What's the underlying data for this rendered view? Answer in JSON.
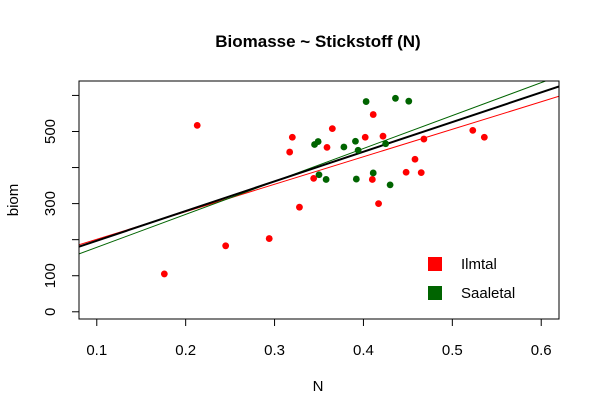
{
  "chart_data": {
    "type": "scatter",
    "title": "Biomasse ~ Stickstoff (N)",
    "xlabel": "N",
    "ylabel": "biom",
    "xlim": [
      0.08,
      0.62
    ],
    "ylim": [
      -20,
      640
    ],
    "xticks": [
      0.1,
      0.2,
      0.3,
      0.4,
      0.5,
      0.6
    ],
    "xtick_labels": [
      "0.1",
      "0.2",
      "0.3",
      "0.4",
      "0.5",
      "0.6"
    ],
    "yticks": [
      0,
      100,
      300,
      500
    ],
    "ytick_labels": [
      "0",
      "100",
      "300",
      "500"
    ],
    "grid": false,
    "legend_position": "bottom-right",
    "series": [
      {
        "name": "Ilmtal",
        "color": "#ff0000",
        "points": [
          [
            0.176,
            105
          ],
          [
            0.213,
            517
          ],
          [
            0.245,
            183
          ],
          [
            0.294,
            203
          ],
          [
            0.317,
            443
          ],
          [
            0.32,
            484
          ],
          [
            0.328,
            290
          ],
          [
            0.344,
            370
          ],
          [
            0.359,
            456
          ],
          [
            0.365,
            508
          ],
          [
            0.402,
            484
          ],
          [
            0.41,
            367
          ],
          [
            0.411,
            547
          ],
          [
            0.417,
            300
          ],
          [
            0.422,
            487
          ],
          [
            0.448,
            387
          ],
          [
            0.458,
            423
          ],
          [
            0.465,
            386
          ],
          [
            0.468,
            479
          ],
          [
            0.523,
            503
          ],
          [
            0.536,
            484
          ]
        ]
      },
      {
        "name": "Saaletal",
        "color": "#006400",
        "points": [
          [
            0.345,
            464
          ],
          [
            0.349,
            472
          ],
          [
            0.35,
            380
          ],
          [
            0.358,
            367
          ],
          [
            0.378,
            457
          ],
          [
            0.391,
            473
          ],
          [
            0.392,
            368
          ],
          [
            0.394,
            448
          ],
          [
            0.403,
            583
          ],
          [
            0.411,
            385
          ],
          [
            0.425,
            466
          ],
          [
            0.43,
            352
          ],
          [
            0.436,
            592
          ],
          [
            0.451,
            584
          ]
        ]
      }
    ],
    "regression_lines": [
      {
        "series": "Ilmtal",
        "color": "#ff0000",
        "width": 1,
        "intercept": 124.9,
        "slope": 762.5
      },
      {
        "series": "Saaletal",
        "color": "#006400",
        "width": 1,
        "intercept": 87.5,
        "slope": 913.3
      },
      {
        "series": "all",
        "color": "#000000",
        "width": 2,
        "intercept": 114.9,
        "slope": 822.5
      }
    ]
  }
}
